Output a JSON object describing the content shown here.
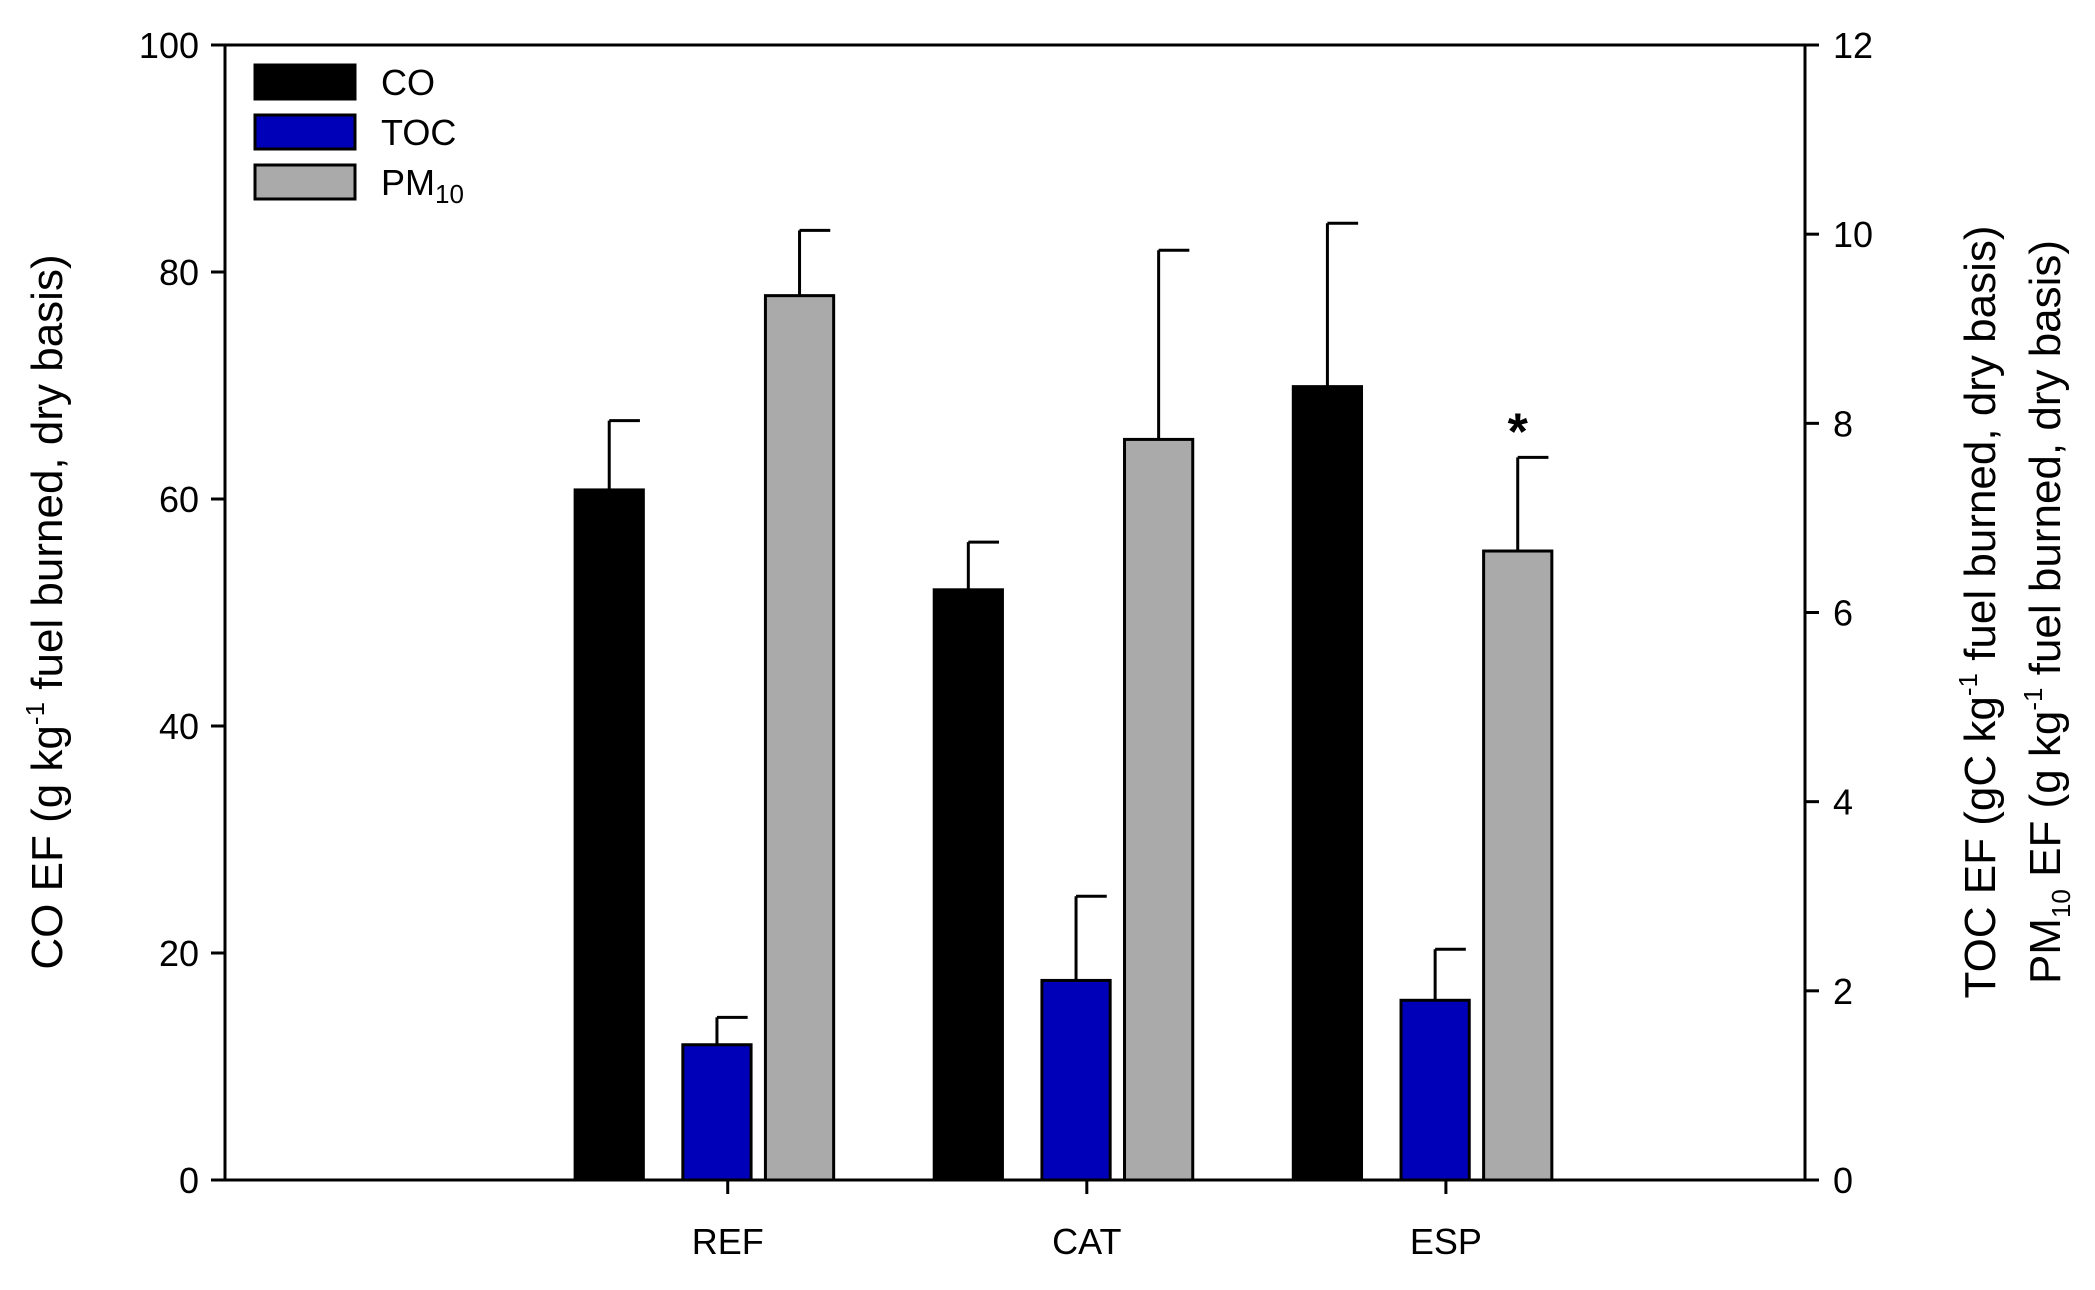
{
  "chart_data": {
    "type": "bar",
    "categories": [
      "REF",
      "CAT",
      "ESP"
    ],
    "left_axis": {
      "label_parts": [
        "CO EF (g kg",
        "-1",
        " fuel burned, dry basis)"
      ],
      "ticks": [
        "0",
        "20",
        "40",
        "60",
        "80",
        "100"
      ],
      "ylim": [
        0,
        100
      ]
    },
    "right_axis": {
      "label_line1_parts": [
        "TOC EF (gC kg",
        "-1",
        " fuel burned, dry basis)"
      ],
      "label_line2_parts": [
        "PM",
        "10",
        " EF (g kg",
        "-1",
        " fuel burned, dry basis)"
      ],
      "ticks": [
        "0",
        "2",
        "4",
        "6",
        "8",
        "10",
        "12"
      ],
      "ylim": [
        0,
        12
      ]
    },
    "series": [
      {
        "name": "CO",
        "name_main": "CO",
        "name_sub": "",
        "axis": "left",
        "color": "#000000",
        "values": [
          60.8,
          52.0,
          69.9
        ],
        "errors": [
          6.1,
          4.2,
          14.4
        ]
      },
      {
        "name": "TOC",
        "name_main": "TOC",
        "name_sub": "",
        "axis": "right",
        "color": "#0000b8",
        "values": [
          1.43,
          2.11,
          1.9
        ],
        "errors": [
          0.29,
          0.89,
          0.54
        ]
      },
      {
        "name": "PM10",
        "name_main": "PM",
        "name_sub": "10",
        "axis": "right",
        "color": "#aaaaaa",
        "values": [
          9.35,
          7.83,
          6.65
        ],
        "errors": [
          0.69,
          2.0,
          0.99
        ]
      }
    ],
    "annotations": [
      {
        "text": "*",
        "series": "PM10",
        "category": "ESP"
      }
    ],
    "legend_position": "top-left",
    "grid": false
  }
}
